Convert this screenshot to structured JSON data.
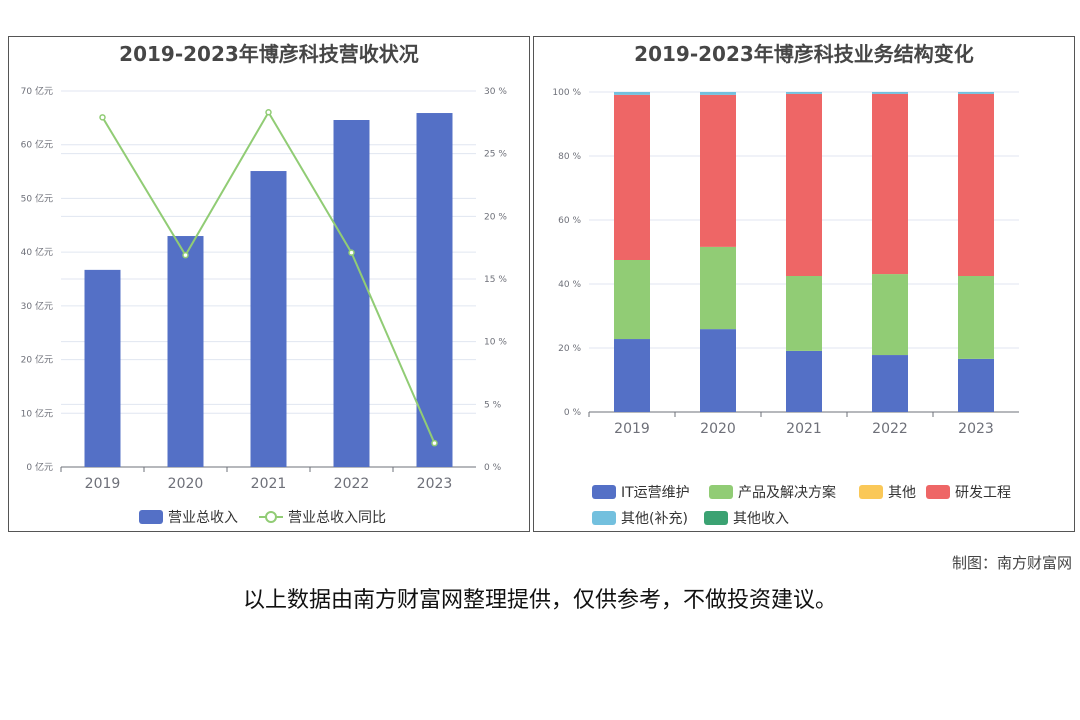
{
  "chart_data": [
    {
      "type": "bar+line",
      "title": "2019-2023年博彦科技营收状况",
      "categories": [
        "2019",
        "2020",
        "2021",
        "2022",
        "2023"
      ],
      "series": [
        {
          "name": "营业总收入",
          "type": "bar",
          "axis": "left",
          "values": [
            36.7,
            43.0,
            55.1,
            64.6,
            65.9
          ],
          "color": "#5470c6"
        },
        {
          "name": "营业总收入同比",
          "type": "line",
          "axis": "right",
          "values": [
            27.9,
            16.9,
            28.3,
            17.1,
            1.9
          ],
          "color": "#91cc75"
        }
      ],
      "ylim": [
        0,
        70
      ],
      "yticks": [
        "0 亿元",
        "10 亿元",
        "20 亿元",
        "30 亿元",
        "40 亿元",
        "50 亿元",
        "60 亿元",
        "70 亿元"
      ],
      "y2lim": [
        0,
        30
      ],
      "y2ticks": [
        "0 %",
        "5 %",
        "10 %",
        "15 %",
        "20 %",
        "25 %",
        "30 %"
      ],
      "legend": "bottom"
    },
    {
      "type": "stacked-bar",
      "title": "2019-2023年博彦科技业务结构变化",
      "categories": [
        "2019",
        "2020",
        "2021",
        "2022",
        "2023"
      ],
      "series": [
        {
          "name": "IT运营维护",
          "values": [
            22.8,
            25.9,
            19.1,
            17.8,
            16.6
          ],
          "color": "#5470c6"
        },
        {
          "name": "产品及解决方案",
          "values": [
            24.7,
            25.7,
            23.4,
            25.3,
            25.9
          ],
          "color": "#91cc75"
        },
        {
          "name": "其他",
          "values": [
            0,
            0,
            0,
            0,
            0
          ],
          "color": "#fac858"
        },
        {
          "name": "研发工程",
          "values": [
            51.6,
            47.5,
            56.9,
            56.3,
            56.9
          ],
          "color": "#ee6666"
        },
        {
          "name": "其他(补充)",
          "values": [
            0.9,
            0.9,
            0.6,
            0.6,
            0.6
          ],
          "color": "#73c0de"
        },
        {
          "name": "其他收入",
          "values": [
            0,
            0,
            0,
            0,
            0
          ],
          "color": "#3ba272"
        }
      ],
      "ylim": [
        0,
        100
      ],
      "yticks": [
        "0 %",
        "20 %",
        "40 %",
        "60 %",
        "80 %",
        "100 %"
      ],
      "legend": "bottom"
    }
  ],
  "footer": {
    "credit": "制图：南方财富网",
    "note": "以上数据由南方财富网整理提供，仅供参考，不做投资建议。"
  }
}
